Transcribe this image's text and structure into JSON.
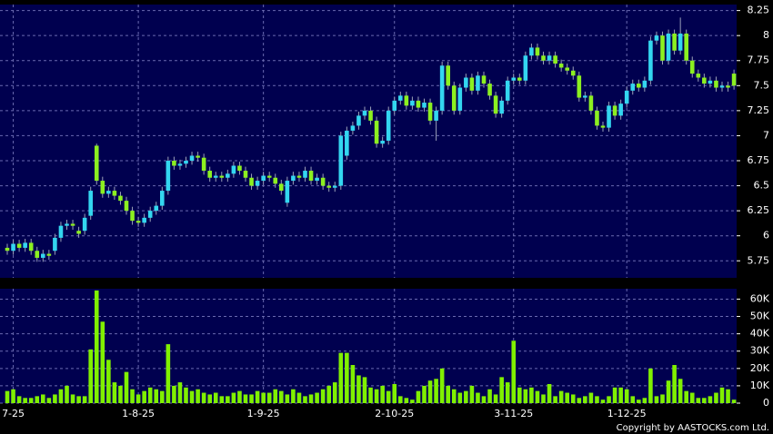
{
  "chart_data": [
    {
      "type": "candlestick",
      "categories": [
        null,
        "7-25",
        null,
        null,
        null,
        null,
        null,
        null,
        null,
        null,
        null,
        null,
        null,
        null,
        null,
        null,
        null,
        null,
        null,
        null,
        null,
        null,
        "1-8-25",
        null,
        null,
        null,
        null,
        null,
        null,
        null,
        null,
        null,
        null,
        null,
        null,
        null,
        null,
        null,
        null,
        null,
        null,
        null,
        null,
        "1-9-25",
        null,
        null,
        null,
        null,
        null,
        null,
        null,
        null,
        null,
        null,
        null,
        null,
        null,
        null,
        null,
        null,
        null,
        null,
        null,
        null,
        null,
        "2-10-25",
        null,
        null,
        null,
        null,
        null,
        null,
        null,
        null,
        null,
        null,
        null,
        null,
        null,
        null,
        null,
        null,
        null,
        null,
        null,
        "3-11-25",
        null,
        null,
        null,
        null,
        null,
        null,
        null,
        null,
        null,
        null,
        null,
        null,
        null,
        null,
        null,
        null,
        null,
        null,
        "1-12-25",
        null,
        null,
        null,
        null,
        null,
        null,
        null,
        null,
        null,
        null,
        null,
        null,
        null,
        null,
        null,
        null,
        null,
        null
      ],
      "open": [
        5.88,
        5.85,
        5.92,
        5.88,
        5.93,
        5.85,
        5.78,
        5.82,
        5.85,
        5.98,
        6.1,
        6.12,
        6.05,
        6.05,
        6.2,
        6.9,
        6.55,
        6.42,
        6.45,
        6.4,
        6.35,
        6.25,
        6.15,
        6.13,
        6.18,
        6.25,
        6.3,
        6.45,
        6.75,
        6.7,
        6.72,
        6.75,
        6.8,
        6.78,
        6.65,
        6.58,
        6.6,
        6.58,
        6.62,
        6.7,
        6.65,
        6.58,
        6.5,
        6.55,
        6.6,
        6.58,
        6.52,
        6.33,
        6.55,
        6.6,
        6.58,
        6.65,
        6.55,
        6.58,
        6.5,
        6.48,
        6.5,
        6.8,
        7.05,
        7.1,
        7.2,
        7.25,
        7.15,
        6.92,
        6.95,
        7.25,
        7.35,
        7.4,
        7.3,
        7.35,
        7.28,
        7.33,
        7.15,
        7.25,
        7.7,
        7.5,
        7.25,
        7.48,
        7.58,
        7.45,
        7.6,
        7.52,
        7.4,
        7.22,
        7.35,
        7.55,
        7.58,
        7.55,
        7.8,
        7.88,
        7.8,
        7.75,
        7.8,
        7.72,
        7.68,
        7.65,
        7.6,
        7.38,
        7.4,
        7.25,
        7.1,
        7.08,
        7.3,
        7.2,
        7.32,
        7.45,
        7.52,
        7.48,
        7.55,
        7.95,
        8.0,
        7.75,
        8.02,
        7.85,
        8.02,
        7.75,
        7.62,
        7.58,
        7.52,
        7.55,
        7.48,
        7.5,
        7.62
      ],
      "high": [
        5.92,
        5.96,
        5.96,
        5.97,
        5.97,
        5.89,
        5.86,
        5.86,
        6.02,
        6.14,
        6.16,
        6.16,
        6.09,
        6.22,
        6.49,
        6.92,
        6.59,
        6.49,
        6.49,
        6.44,
        6.39,
        6.29,
        6.19,
        6.22,
        6.29,
        6.34,
        6.49,
        6.79,
        6.79,
        6.76,
        6.79,
        6.84,
        6.84,
        6.82,
        6.69,
        6.64,
        6.64,
        6.66,
        6.74,
        6.74,
        6.69,
        6.62,
        6.59,
        6.64,
        6.64,
        6.62,
        6.56,
        6.59,
        6.64,
        6.64,
        6.69,
        6.69,
        6.62,
        6.62,
        6.54,
        6.54,
        7.04,
        7.09,
        7.14,
        7.24,
        7.29,
        7.29,
        7.19,
        6.99,
        7.29,
        7.39,
        7.44,
        7.44,
        7.39,
        7.39,
        7.37,
        7.37,
        7.29,
        7.74,
        7.74,
        7.54,
        7.52,
        7.62,
        7.62,
        7.64,
        7.64,
        7.56,
        7.44,
        7.39,
        7.59,
        7.62,
        7.62,
        7.84,
        7.92,
        7.92,
        7.84,
        7.84,
        7.84,
        7.76,
        7.72,
        7.69,
        7.64,
        7.44,
        7.44,
        7.29,
        7.14,
        7.34,
        7.34,
        7.36,
        7.49,
        7.56,
        7.56,
        7.59,
        7.99,
        8.04,
        8.04,
        8.06,
        8.06,
        8.18,
        8.06,
        7.79,
        7.66,
        7.62,
        7.59,
        7.59,
        7.54,
        7.54,
        7.66
      ],
      "low": [
        5.81,
        5.81,
        5.84,
        5.84,
        5.81,
        5.74,
        5.74,
        5.76,
        5.81,
        5.94,
        6.06,
        6.06,
        5.98,
        6.01,
        6.16,
        6.51,
        6.38,
        6.38,
        6.36,
        6.31,
        6.21,
        6.11,
        6.09,
        6.09,
        6.14,
        6.21,
        6.26,
        6.41,
        6.66,
        6.66,
        6.68,
        6.71,
        6.74,
        6.61,
        6.54,
        6.54,
        6.54,
        6.54,
        6.58,
        6.61,
        6.54,
        6.46,
        6.46,
        6.51,
        6.54,
        6.48,
        6.41,
        6.29,
        6.51,
        6.54,
        6.54,
        6.51,
        6.51,
        6.46,
        6.44,
        6.44,
        6.46,
        6.76,
        7.01,
        7.06,
        7.16,
        7.11,
        6.88,
        6.88,
        6.91,
        7.21,
        7.31,
        7.26,
        7.26,
        7.24,
        7.24,
        7.11,
        6.95,
        7.21,
        7.46,
        7.21,
        7.21,
        7.44,
        7.41,
        7.41,
        7.48,
        7.36,
        7.18,
        7.18,
        7.31,
        7.51,
        7.51,
        7.51,
        7.76,
        7.76,
        7.71,
        7.71,
        7.68,
        7.64,
        7.61,
        7.56,
        7.34,
        7.34,
        7.21,
        7.06,
        7.04,
        7.04,
        7.16,
        7.16,
        7.28,
        7.41,
        7.44,
        7.44,
        7.51,
        7.91,
        7.71,
        7.71,
        7.81,
        7.81,
        7.71,
        7.58,
        7.54,
        7.48,
        7.48,
        7.44,
        7.44,
        7.44,
        7.46
      ],
      "close": [
        5.85,
        5.92,
        5.88,
        5.93,
        5.85,
        5.78,
        5.82,
        5.8,
        5.98,
        6.1,
        6.12,
        6.1,
        6.02,
        6.18,
        6.45,
        6.55,
        6.42,
        6.45,
        6.4,
        6.35,
        6.25,
        6.15,
        6.13,
        6.18,
        6.25,
        6.3,
        6.45,
        6.75,
        6.7,
        6.72,
        6.75,
        6.8,
        6.78,
        6.65,
        6.58,
        6.6,
        6.58,
        6.62,
        6.7,
        6.65,
        6.58,
        6.5,
        6.55,
        6.6,
        6.58,
        6.52,
        6.45,
        6.55,
        6.6,
        6.58,
        6.65,
        6.55,
        6.58,
        6.5,
        6.48,
        6.5,
        7.0,
        7.05,
        7.1,
        7.2,
        7.25,
        7.15,
        6.92,
        6.95,
        7.25,
        7.35,
        7.4,
        7.3,
        7.35,
        7.28,
        7.33,
        7.15,
        7.25,
        7.7,
        7.5,
        7.25,
        7.48,
        7.58,
        7.45,
        7.6,
        7.52,
        7.4,
        7.22,
        7.35,
        7.55,
        7.58,
        7.55,
        7.8,
        7.88,
        7.8,
        7.75,
        7.8,
        7.72,
        7.68,
        7.65,
        7.6,
        7.38,
        7.4,
        7.25,
        7.1,
        7.08,
        7.3,
        7.2,
        7.32,
        7.45,
        7.52,
        7.48,
        7.55,
        7.95,
        8.0,
        7.75,
        8.02,
        7.85,
        8.02,
        7.75,
        7.62,
        7.58,
        7.52,
        7.55,
        7.48,
        7.5,
        7.48,
        7.5
      ],
      "up_color": "#33d6f0",
      "down_color": "#8cf020",
      "ylim": [
        5.58,
        8.31
      ],
      "yticks": [
        5.75,
        6,
        6.25,
        6.5,
        6.75,
        7,
        7.25,
        7.5,
        7.75,
        8,
        8.25
      ],
      "grid": true
    },
    {
      "type": "bar",
      "values": [
        7000,
        8000,
        4000,
        3000,
        3000,
        4000,
        5000,
        3000,
        5000,
        8000,
        10000,
        5000,
        4000,
        4000,
        31000,
        65000,
        47000,
        25000,
        12000,
        10000,
        18000,
        8000,
        5000,
        7000,
        9000,
        8000,
        7000,
        34000,
        10000,
        12000,
        9000,
        7000,
        8000,
        6000,
        5000,
        6000,
        4000,
        4000,
        6000,
        7000,
        5000,
        5000,
        7000,
        6000,
        6000,
        8000,
        7000,
        5000,
        8000,
        6000,
        4000,
        5000,
        6000,
        8000,
        10000,
        12000,
        29000,
        29000,
        22000,
        16000,
        15000,
        9000,
        8000,
        10000,
        7000,
        11000,
        4000,
        3000,
        2000,
        7000,
        10000,
        13000,
        14000,
        20000,
        10000,
        8000,
        6000,
        7000,
        10000,
        6000,
        4000,
        8000,
        5000,
        15000,
        12000,
        36000,
        9000,
        8000,
        9000,
        7000,
        5000,
        11000,
        4000,
        7000,
        6000,
        5000,
        3000,
        4000,
        6000,
        4000,
        2000,
        4000,
        9000,
        9000,
        8000,
        4000,
        2000,
        3000,
        20000,
        4000,
        5000,
        13000,
        22000,
        14000,
        7000,
        6000,
        3000,
        3000,
        4000,
        6000,
        9000,
        8000,
        2000
      ],
      "color": "#80f000",
      "ylim": [
        0,
        66000
      ],
      "yticks": [
        0,
        {
          "value": 10000,
          "label": "10K"
        },
        {
          "value": 20000,
          "label": "20K"
        },
        {
          "value": 30000,
          "label": "30K"
        },
        {
          "value": 40000,
          "label": "40K"
        },
        {
          "value": 50000,
          "label": "50K"
        },
        {
          "value": 60000,
          "label": "60K"
        }
      ],
      "grid": true
    }
  ],
  "footer": "Copyright by AASTOCKS.com Ltd."
}
